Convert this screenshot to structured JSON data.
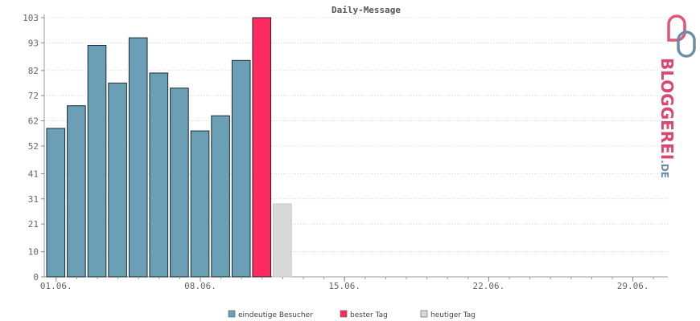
{
  "chart_data": {
    "type": "bar",
    "title": "Daily-Message",
    "y_ticks": [
      "0",
      "10",
      "21",
      "31",
      "41",
      "52",
      "62",
      "72",
      "82",
      "93",
      "103"
    ],
    "ylim": [
      0,
      103
    ],
    "x_ticks": [
      "01.06.",
      "08.06.",
      "15.06.",
      "22.06.",
      "29.06."
    ],
    "days": [
      1,
      2,
      3,
      4,
      5,
      6,
      7,
      8,
      9,
      10,
      11,
      12,
      13,
      14,
      15,
      16,
      17,
      18,
      19,
      20,
      21,
      22,
      23,
      24,
      25,
      26,
      27,
      28,
      29,
      30
    ],
    "series": [
      {
        "name": "eindeutige Besucher",
        "color": "#6a9fb5",
        "points": [
          {
            "day": 1,
            "value": 59
          },
          {
            "day": 2,
            "value": 68
          },
          {
            "day": 3,
            "value": 92
          },
          {
            "day": 4,
            "value": 77
          },
          {
            "day": 5,
            "value": 95
          },
          {
            "day": 6,
            "value": 81
          },
          {
            "day": 7,
            "value": 75
          },
          {
            "day": 8,
            "value": 58
          },
          {
            "day": 9,
            "value": 64
          },
          {
            "day": 10,
            "value": 86
          }
        ]
      },
      {
        "name": "bester Tag",
        "color": "#ff2a5f",
        "points": [
          {
            "day": 11,
            "value": 103
          }
        ]
      },
      {
        "name": "heutiger Tag",
        "color": "#d9d9d9",
        "points": [
          {
            "day": 12,
            "value": 29
          }
        ]
      }
    ],
    "grid": true,
    "legend_position": "bottom"
  },
  "logo": {
    "main": "BLOGGEREI",
    "suffix": ".DE"
  }
}
